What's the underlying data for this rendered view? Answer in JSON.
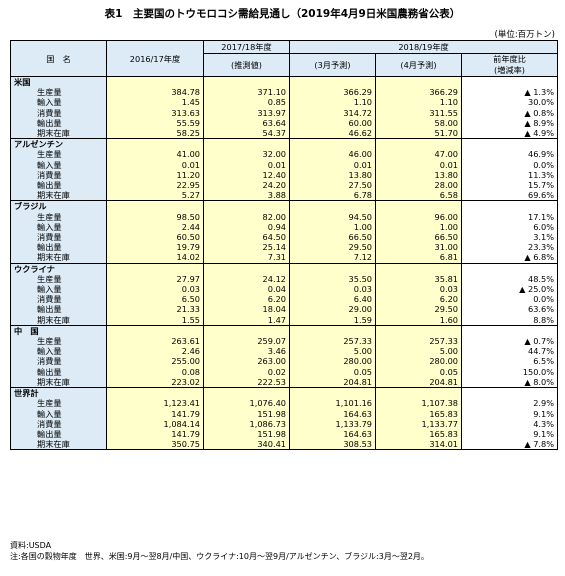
{
  "title": "表1　主要国のトウモロコシ需給見通し（2019年4月9日米国農務省公表）",
  "unit": "(単位:百万トン)",
  "header": {
    "country": "国　名",
    "y1617": "2016/17年度",
    "y1718": "2017/18年度",
    "y1718_sub": "(推測値)",
    "y1819": "2018/19年度",
    "march": "(3月予測)",
    "april": "(4月予測)",
    "change": "前年度比",
    "change_sub": "(増減率)"
  },
  "countries": [
    {
      "name": "米国",
      "rows": [
        {
          "item": "生産量",
          "v1": "384.78",
          "v2": "371.10",
          "v3": "366.29",
          "v4": "366.29",
          "chg": "▲ 1.3%"
        },
        {
          "item": "輸入量",
          "v1": "1.45",
          "v2": "0.85",
          "v3": "1.10",
          "v4": "1.10",
          "chg": "30.0%"
        },
        {
          "item": "消費量",
          "v1": "313.63",
          "v2": "313.97",
          "v3": "314.72",
          "v4": "311.55",
          "chg": "▲ 0.8%"
        },
        {
          "item": "輸出量",
          "v1": "55.59",
          "v2": "63.64",
          "v3": "60.00",
          "v4": "58.00",
          "chg": "▲ 8.9%"
        },
        {
          "item": "期末在庫",
          "v1": "58.25",
          "v2": "54.37",
          "v3": "46.62",
          "v4": "51.70",
          "chg": "▲ 4.9%"
        }
      ]
    },
    {
      "name": "アルゼンチン",
      "rows": [
        {
          "item": "生産量",
          "v1": "41.00",
          "v2": "32.00",
          "v3": "46.00",
          "v4": "47.00",
          "chg": "46.9%"
        },
        {
          "item": "輸入量",
          "v1": "0.01",
          "v2": "0.01",
          "v3": "0.01",
          "v4": "0.01",
          "chg": "0.0%"
        },
        {
          "item": "消費量",
          "v1": "11.20",
          "v2": "12.40",
          "v3": "13.80",
          "v4": "13.80",
          "chg": "11.3%"
        },
        {
          "item": "輸出量",
          "v1": "22.95",
          "v2": "24.20",
          "v3": "27.50",
          "v4": "28.00",
          "chg": "15.7%"
        },
        {
          "item": "期末在庫",
          "v1": "5.27",
          "v2": "3.88",
          "v3": "6.78",
          "v4": "6.58",
          "chg": "69.6%"
        }
      ]
    },
    {
      "name": "ブラジル",
      "rows": [
        {
          "item": "生産量",
          "v1": "98.50",
          "v2": "82.00",
          "v3": "94.50",
          "v4": "96.00",
          "chg": "17.1%"
        },
        {
          "item": "輸入量",
          "v1": "2.44",
          "v2": "0.94",
          "v3": "1.00",
          "v4": "1.00",
          "chg": "6.0%"
        },
        {
          "item": "消費量",
          "v1": "60.50",
          "v2": "64.50",
          "v3": "66.50",
          "v4": "66.50",
          "chg": "3.1%"
        },
        {
          "item": "輸出量",
          "v1": "19.79",
          "v2": "25.14",
          "v3": "29.50",
          "v4": "31.00",
          "chg": "23.3%"
        },
        {
          "item": "期末在庫",
          "v1": "14.02",
          "v2": "7.31",
          "v3": "7.12",
          "v4": "6.81",
          "chg": "▲ 6.8%"
        }
      ]
    },
    {
      "name": "ウクライナ",
      "rows": [
        {
          "item": "生産量",
          "v1": "27.97",
          "v2": "24.12",
          "v3": "35.50",
          "v4": "35.81",
          "chg": "48.5%"
        },
        {
          "item": "輸入量",
          "v1": "0.03",
          "v2": "0.04",
          "v3": "0.03",
          "v4": "0.03",
          "chg": "▲ 25.0%"
        },
        {
          "item": "消費量",
          "v1": "6.50",
          "v2": "6.20",
          "v3": "6.40",
          "v4": "6.20",
          "chg": "0.0%"
        },
        {
          "item": "輸出量",
          "v1": "21.33",
          "v2": "18.04",
          "v3": "29.00",
          "v4": "29.50",
          "chg": "63.6%"
        },
        {
          "item": "期末在庫",
          "v1": "1.55",
          "v2": "1.47",
          "v3": "1.59",
          "v4": "1.60",
          "chg": "8.8%"
        }
      ]
    },
    {
      "name": "中　国",
      "rows": [
        {
          "item": "生産量",
          "v1": "263.61",
          "v2": "259.07",
          "v3": "257.33",
          "v4": "257.33",
          "chg": "▲ 0.7%"
        },
        {
          "item": "輸入量",
          "v1": "2.46",
          "v2": "3.46",
          "v3": "5.00",
          "v4": "5.00",
          "chg": "44.7%"
        },
        {
          "item": "消費量",
          "v1": "255.00",
          "v2": "263.00",
          "v3": "280.00",
          "v4": "280.00",
          "chg": "6.5%"
        },
        {
          "item": "輸出量",
          "v1": "0.08",
          "v2": "0.02",
          "v3": "0.05",
          "v4": "0.05",
          "chg": "150.0%"
        },
        {
          "item": "期末在庫",
          "v1": "223.02",
          "v2": "222.53",
          "v3": "204.81",
          "v4": "204.81",
          "chg": "▲ 8.0%"
        }
      ]
    },
    {
      "name": "世界計",
      "rows": [
        {
          "item": "生産量",
          "v1": "1,123.41",
          "v2": "1,076.40",
          "v3": "1,101.16",
          "v4": "1,107.38",
          "chg": "2.9%"
        },
        {
          "item": "輸入量",
          "v1": "141.79",
          "v2": "151.98",
          "v3": "164.63",
          "v4": "165.83",
          "chg": "9.1%"
        },
        {
          "item": "消費量",
          "v1": "1,084.14",
          "v2": "1,086.73",
          "v3": "1,133.79",
          "v4": "1,133.77",
          "chg": "4.3%"
        },
        {
          "item": "輸出量",
          "v1": "141.79",
          "v2": "151.98",
          "v3": "164.63",
          "v4": "165.83",
          "chg": "9.1%"
        },
        {
          "item": "期末在庫",
          "v1": "350.75",
          "v2": "340.41",
          "v3": "308.53",
          "v4": "314.01",
          "chg": "▲ 7.8%"
        }
      ]
    }
  ],
  "notes": {
    "source": "資料:USDA",
    "note": "注:各国の穀物年度　世界、米国:9月～翌8月/中国、ウクライナ:10月～翌9月/アルゼンチン、ブラジル:3月～翌2月。"
  }
}
